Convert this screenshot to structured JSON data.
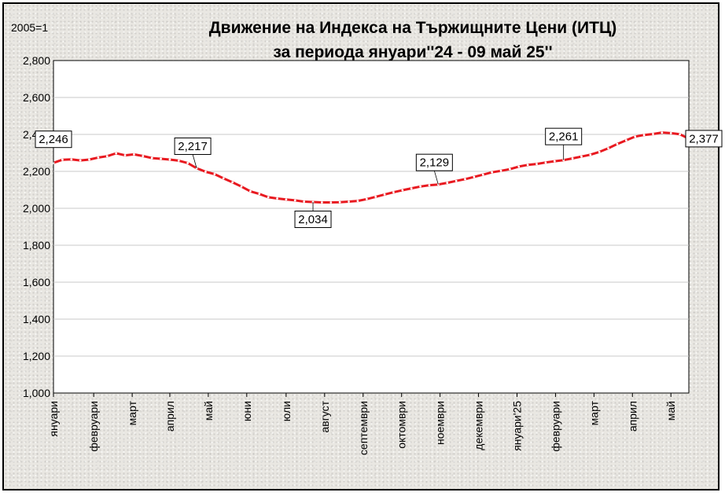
{
  "chart_data": {
    "type": "line",
    "title": [
      "Движение на Индекса на Тържищните Цени (ИТЦ)",
      "за периода януари''24 - 09 май 25''"
    ],
    "base_note": "2005=1",
    "xlabel": "",
    "ylabel": "",
    "ylim": [
      1.0,
      2.8
    ],
    "yticks": [
      1.0,
      1.2,
      1.4,
      1.6,
      1.8,
      2.0,
      2.2,
      2.4,
      2.6,
      2.8
    ],
    "ytick_labels": [
      "1,000",
      "1,200",
      "1,400",
      "1,600",
      "1,800",
      "2,000",
      "2,200",
      "2,400",
      "2,600",
      "2,800"
    ],
    "grid": true,
    "legend": "none",
    "line_color": "#e8181f",
    "month_labels": [
      {
        "label": "януари",
        "week": 0
      },
      {
        "label": "февруари",
        "week": 4.5
      },
      {
        "label": "март",
        "week": 8.8
      },
      {
        "label": "април",
        "week": 13.0
      },
      {
        "label": "май",
        "week": 17.3
      },
      {
        "label": "юни",
        "week": 21.6
      },
      {
        "label": "юли",
        "week": 26.0
      },
      {
        "label": "август",
        "week": 30.3
      },
      {
        "label": "септември",
        "week": 34.6
      },
      {
        "label": "октомври",
        "week": 38.9
      },
      {
        "label": "ноември",
        "week": 43.2
      },
      {
        "label": "декември",
        "week": 47.5
      },
      {
        "label": "януари'25",
        "week": 51.8
      },
      {
        "label": "февруари",
        "week": 56.1
      },
      {
        "label": "март",
        "week": 60.4
      },
      {
        "label": "април",
        "week": 64.7
      },
      {
        "label": "май",
        "week": 69.0
      }
    ],
    "series": [
      {
        "values": [
          2.246,
          2.263,
          2.265,
          2.259,
          2.264,
          2.275,
          2.282,
          2.298,
          2.287,
          2.292,
          2.283,
          2.272,
          2.268,
          2.264,
          2.258,
          2.245,
          2.217,
          2.198,
          2.185,
          2.162,
          2.141,
          2.118,
          2.092,
          2.078,
          2.06,
          2.053,
          2.048,
          2.043,
          2.036,
          2.034,
          2.032,
          2.032,
          2.033,
          2.036,
          2.04,
          2.05,
          2.062,
          2.075,
          2.087,
          2.098,
          2.108,
          2.118,
          2.125,
          2.129,
          2.138,
          2.148,
          2.158,
          2.17,
          2.182,
          2.195,
          2.203,
          2.212,
          2.226,
          2.235,
          2.24,
          2.248,
          2.255,
          2.261,
          2.27,
          2.28,
          2.29,
          2.305,
          2.325,
          2.348,
          2.368,
          2.388,
          2.397,
          2.402,
          2.41,
          2.407,
          2.401,
          2.377
        ]
      }
    ],
    "data_labels": [
      {
        "index": 0,
        "text": "2,246"
      },
      {
        "index": 16,
        "text": "2,217"
      },
      {
        "index": 29,
        "text": "2,034"
      },
      {
        "index": 43,
        "text": "2,129"
      },
      {
        "index": 57,
        "text": "2,261"
      },
      {
        "index": 71,
        "text": "2,377"
      }
    ]
  }
}
